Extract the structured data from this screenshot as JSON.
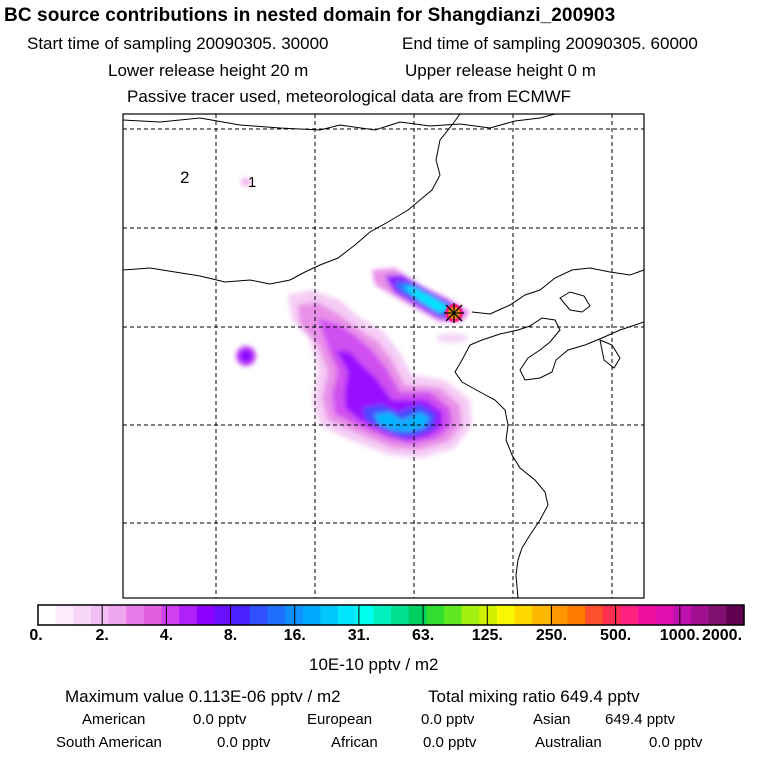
{
  "header": {
    "title": "BC  source contributions in nested domain for Shangdianzi_200903",
    "start_time": "Start time of sampling 20090305. 30000",
    "end_time": "End time of sampling 20090305. 60000",
    "lower_release": "Lower release height   20 m",
    "upper_release": "Upper release height    0 m",
    "tracer_info": "Passive tracer used, meteorological data are from ECMWF"
  },
  "map": {
    "label_2": "2",
    "label_1": "1",
    "receptor": "Shangdianzi"
  },
  "colorbar": {
    "ticks": [
      "0.",
      "2.",
      "4.",
      "8.",
      "16.",
      "31.",
      "63.",
      "125.",
      "250.",
      "500.",
      "1000.",
      "2000."
    ],
    "units": "10E-10 pptv / m2",
    "colors": [
      "#ffffff",
      "#fcebfc",
      "#f8d6f8",
      "#f3bff3",
      "#eea6ee",
      "#e87ce8",
      "#e060e0",
      "#d040f0",
      "#b020f8",
      "#8c00ff",
      "#6a10ff",
      "#4a20ff",
      "#3050ff",
      "#2070ff",
      "#1090ff",
      "#00aaff",
      "#00c8ff",
      "#00e6ff",
      "#00ffee",
      "#00f0c0",
      "#00e090",
      "#00d060",
      "#30dd30",
      "#60e820",
      "#a0f010",
      "#d0f000",
      "#f8f800",
      "#ffd800",
      "#ffb800",
      "#ff9800",
      "#ff7800",
      "#ff5030",
      "#ff3050",
      "#ff2080",
      "#f010a0",
      "#e010b0",
      "#c010b0",
      "#a01090",
      "#801070",
      "#600050"
    ]
  },
  "summary": {
    "max_value": "Maximum value  0.113E-06 pptv / m2",
    "total_mixing": "Total mixing ratio      649.4 pptv",
    "sources": [
      {
        "label": "American",
        "value": "0.0 pptv"
      },
      {
        "label": "European",
        "value": "0.0 pptv"
      },
      {
        "label": "Asian",
        "value": "649.4 pptv"
      },
      {
        "label": "South American",
        "value": "0.0 pptv"
      },
      {
        "label": "African",
        "value": "0.0 pptv"
      },
      {
        "label": "Australian",
        "value": "0.0 pptv"
      }
    ]
  }
}
